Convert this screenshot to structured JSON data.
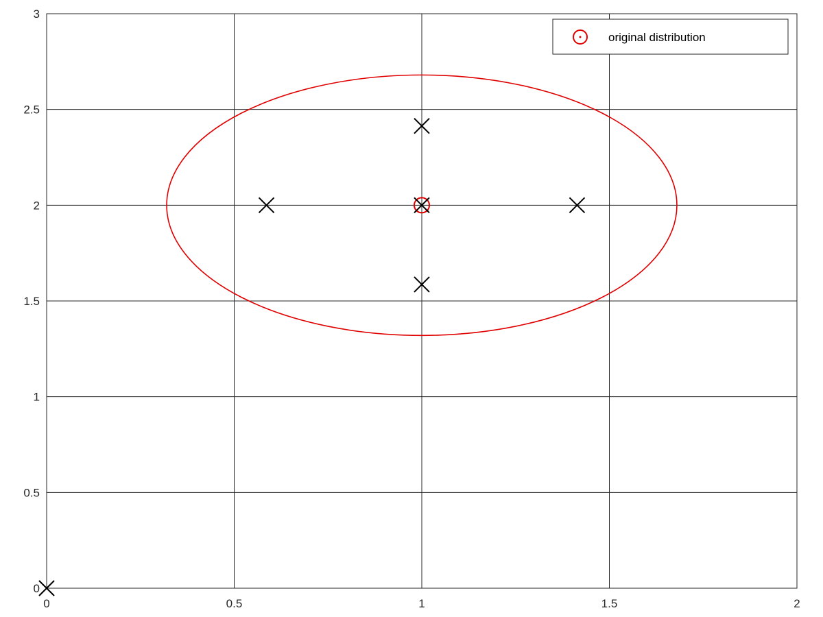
{
  "chart_data": {
    "type": "scatter",
    "title": "",
    "xlabel": "",
    "ylabel": "",
    "xlim": [
      0,
      2
    ],
    "ylim": [
      0,
      3
    ],
    "grid": true,
    "legend_position": "top-right",
    "x_ticks": [
      0,
      0.5,
      1,
      1.5,
      2
    ],
    "y_ticks": [
      0,
      0.5,
      1,
      1.5,
      2,
      2.5,
      3
    ],
    "x_tick_labels": [
      "0",
      "0.5",
      "1",
      "1.5",
      "2"
    ],
    "y_tick_labels": [
      "0",
      "0.5",
      "1",
      "1.5",
      "2",
      "2.5",
      "3"
    ],
    "series": [
      {
        "name": "original distribution",
        "marker": "circle-dot",
        "color": "#e00000",
        "points": [
          [
            1,
            2
          ]
        ],
        "ellipse": {
          "center": [
            1,
            2
          ],
          "semi_axes": [
            0.68,
            0.68
          ],
          "color": "#e00000"
        }
      },
      {
        "marker": "x",
        "color": "#000000",
        "points": [
          [
            0,
            0
          ],
          [
            1,
            2
          ],
          [
            1.414,
            2
          ],
          [
            0.586,
            2
          ],
          [
            1,
            2.414
          ],
          [
            1,
            1.586
          ]
        ]
      }
    ]
  }
}
